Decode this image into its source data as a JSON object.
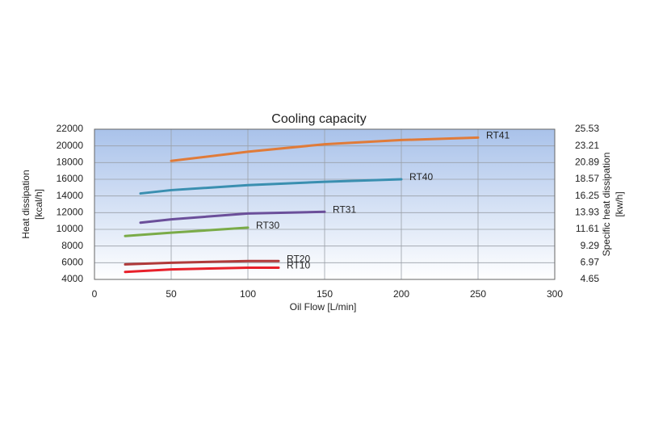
{
  "chart_data": {
    "type": "line",
    "title": "Cooling capacity",
    "xlabel": "Oil Flow [L/min]",
    "ylabel": [
      "Heat dissipation",
      "[kcal/h]"
    ],
    "y2label": [
      "Specific heat dissipation",
      "[kw/h]"
    ],
    "xlim": [
      0,
      300
    ],
    "xticks": [
      0,
      50,
      100,
      150,
      200,
      250,
      300
    ],
    "ylim": [
      4000,
      22000
    ],
    "yticks": [
      4000,
      6000,
      8000,
      10000,
      12000,
      14000,
      16000,
      18000,
      20000,
      22000
    ],
    "y2lim": [
      4.65,
      25.53
    ],
    "y2ticks": [
      4.65,
      6.97,
      9.29,
      11.61,
      13.93,
      16.25,
      18.57,
      20.89,
      23.21,
      25.53
    ],
    "grid": true,
    "series": [
      {
        "name": "RT41",
        "color": "#e07b39",
        "x": [
          50,
          100,
          150,
          200,
          250
        ],
        "values": [
          18200,
          19300,
          20200,
          20700,
          21000
        ]
      },
      {
        "name": "RT40",
        "color": "#3a8fb0",
        "x": [
          30,
          50,
          100,
          150,
          200
        ],
        "values": [
          14300,
          14700,
          15300,
          15700,
          16000
        ]
      },
      {
        "name": "RT31",
        "color": "#6b4f9a",
        "x": [
          30,
          50,
          100,
          150
        ],
        "values": [
          10800,
          11200,
          11900,
          12100
        ]
      },
      {
        "name": "RT30",
        "color": "#7aab48",
        "x": [
          20,
          50,
          100
        ],
        "values": [
          9200,
          9600,
          10200
        ]
      },
      {
        "name": "RT20",
        "color": "#b03a3a",
        "x": [
          20,
          50,
          100,
          120
        ],
        "values": [
          5800,
          6000,
          6200,
          6200
        ]
      },
      {
        "name": "RT10",
        "color": "#e8202a",
        "x": [
          20,
          50,
          100,
          120
        ],
        "values": [
          4900,
          5200,
          5400,
          5400
        ]
      }
    ]
  }
}
